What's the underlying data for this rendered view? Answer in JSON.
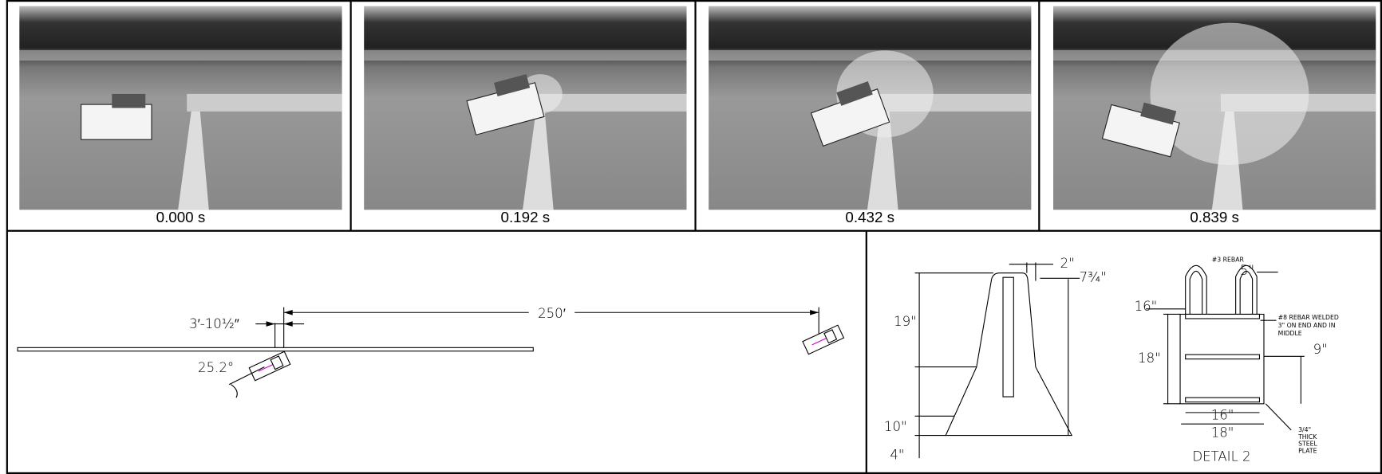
{
  "frames": [
    {
      "time": "0.000 s"
    },
    {
      "time": "0.192 s"
    },
    {
      "time": "0.432 s"
    },
    {
      "time": "0.839 s"
    }
  ],
  "plan": {
    "offset": "3′-10½″",
    "distance": "250′",
    "angle": "25.2°"
  },
  "section": {
    "top_width": "2\"",
    "taper": "7¾\"",
    "upper_height": "19\"",
    "lower_height": "10\"",
    "base_height": "4\""
  },
  "detail": {
    "rebar_top": "#3 REBAR",
    "rebar_spacing": "5\"",
    "rebar_height": "16\"",
    "rebar_welded": [
      "#8 REBAR WELDED",
      "3\" ON END AND IN",
      "MIDDLE"
    ],
    "height": "18\"",
    "mid_height": "9\"",
    "inner_width": "16\"",
    "outer_width": "18\"",
    "plate": [
      "3/4\"",
      "THICK",
      "STEEL",
      "PLATE"
    ],
    "title": "DETAIL 2"
  }
}
